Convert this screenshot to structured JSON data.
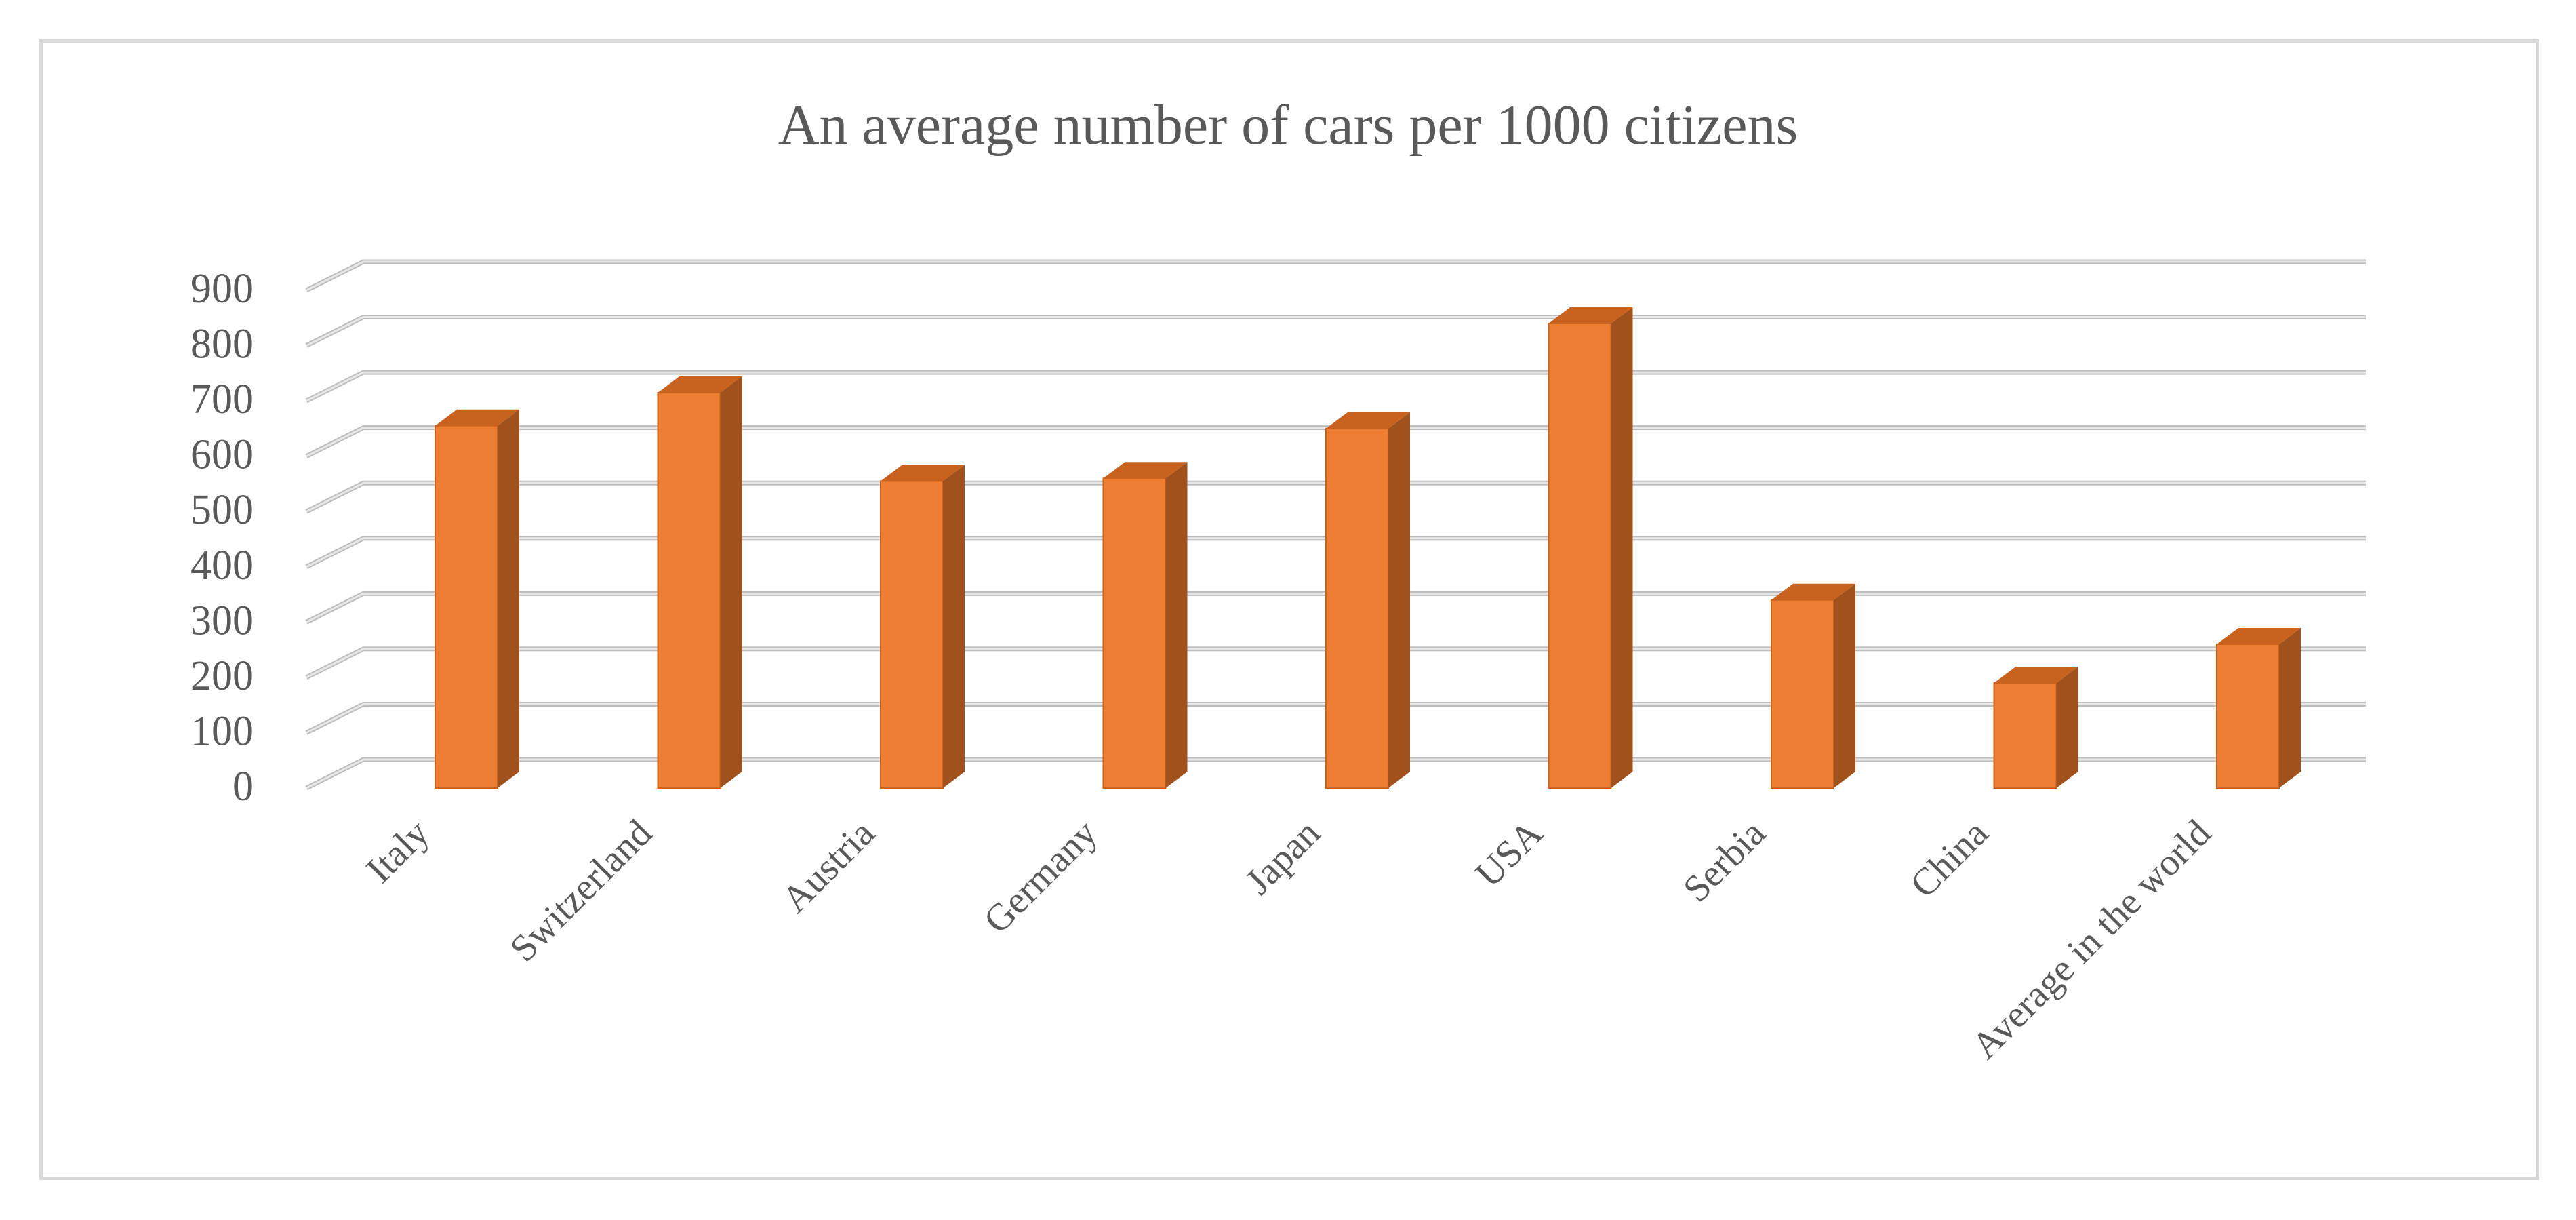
{
  "chart_data": {
    "type": "bar",
    "title": "An average number of cars per 1000 citizens",
    "xlabel": "",
    "ylabel": "",
    "categories": [
      "Italy",
      "Switzerland",
      "Austria",
      "Germany",
      "Japan",
      "USA",
      "Serbia",
      "China",
      "Average in the world"
    ],
    "values": [
      655,
      715,
      555,
      560,
      650,
      840,
      340,
      190,
      260
    ],
    "ylim": [
      0,
      900
    ],
    "yticks": [
      "0",
      "100",
      "200",
      "300",
      "400",
      "500",
      "600",
      "700",
      "800",
      "900"
    ],
    "grid": true,
    "legend": "none",
    "colors": {
      "bar_front": "#ED7D31",
      "bar_side": "#A0511C",
      "bar_top": "#C9621F",
      "gridline": "#d0d0d0",
      "text": "#595959"
    }
  }
}
